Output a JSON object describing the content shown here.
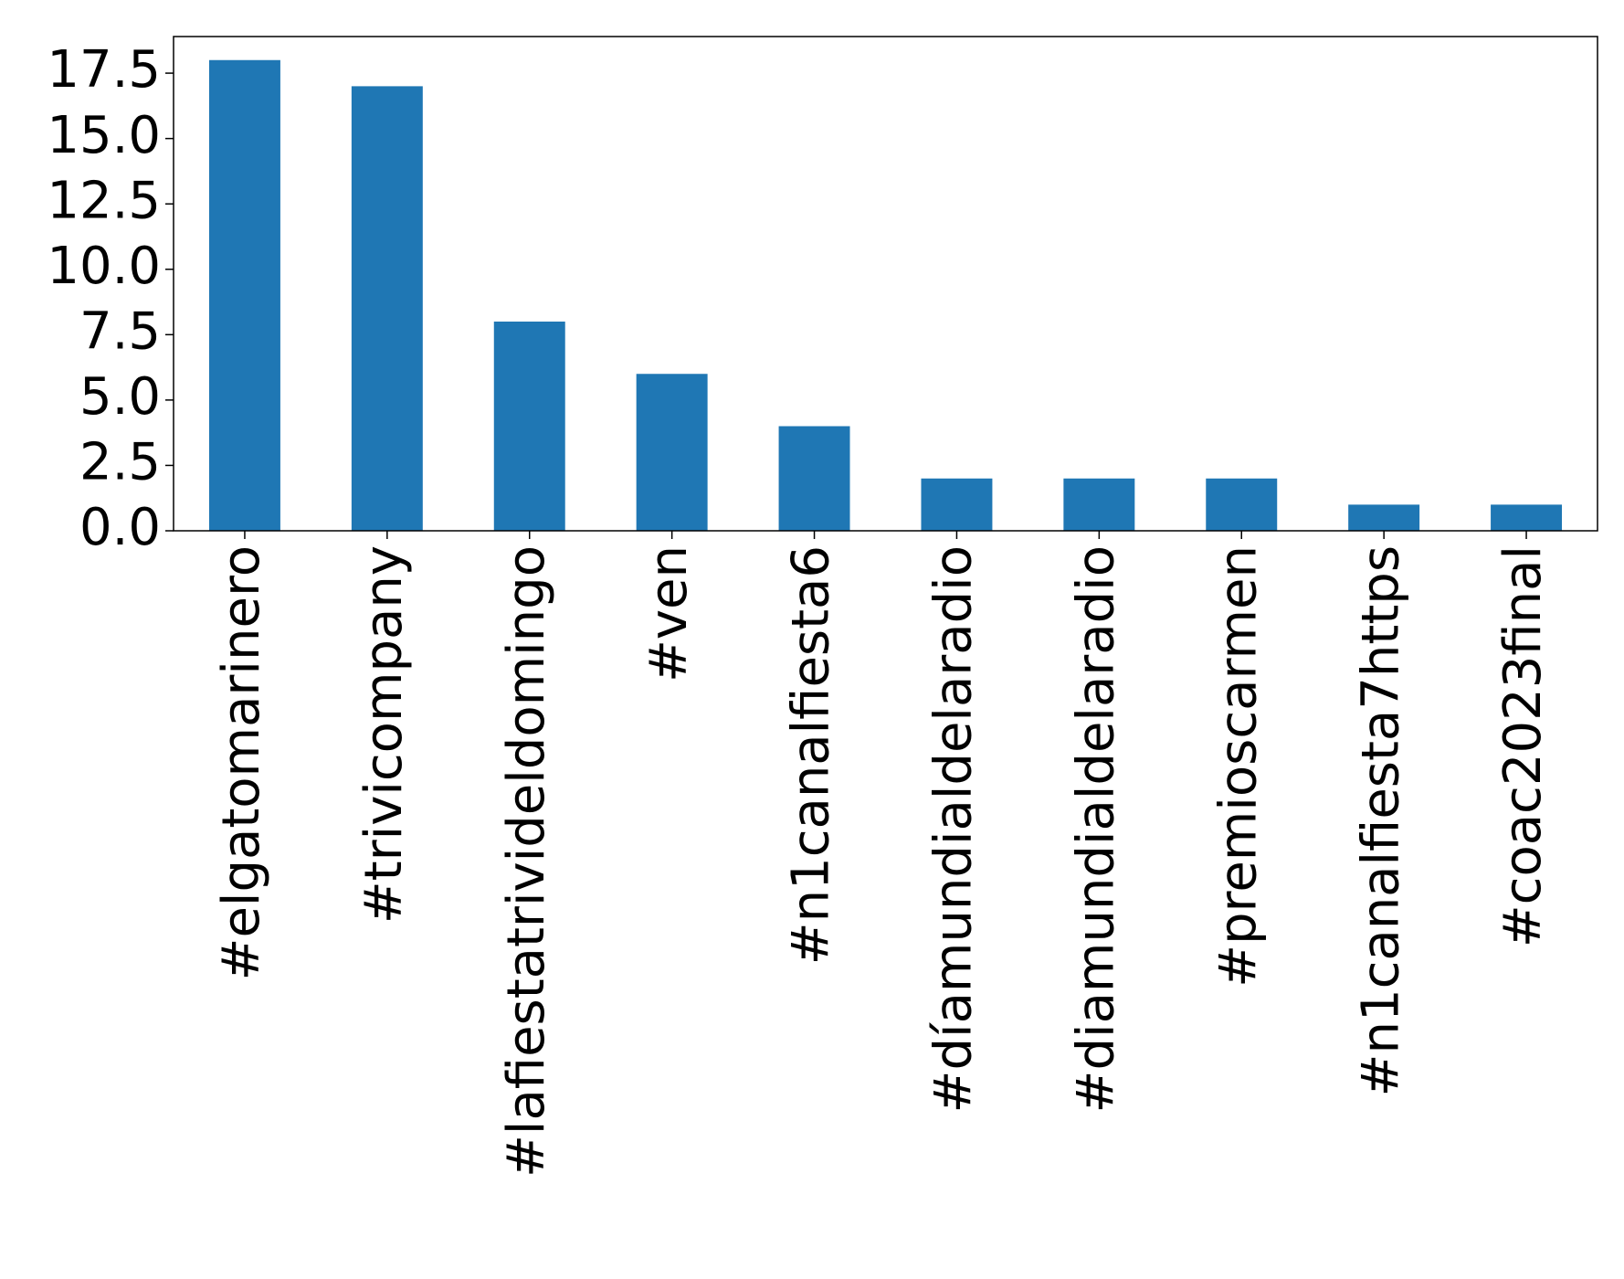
{
  "chart_data": {
    "type": "bar",
    "categories": [
      "#elgatomarinero",
      "#trivicompany",
      "#lafiestatrivideldomingo",
      "#ven",
      "#n1canalfiesta6",
      "#díamundialdelaradio",
      "#diamundialdelaradio",
      "#premioscarmen",
      "#n1canalfiesta7https",
      "#coac2023final"
    ],
    "values": [
      18,
      17,
      8,
      6,
      4,
      2,
      2,
      2,
      1,
      1
    ],
    "color": "#1f77b4",
    "ylim": [
      0,
      18.9
    ],
    "yticks": [
      {
        "value": 0,
        "label": "0.0"
      },
      2.5,
      {
        "value": 5,
        "label": "5.0"
      },
      7.5,
      {
        "value": 10,
        "label": "10.0"
      },
      12.5,
      {
        "value": 15,
        "label": "15.0"
      },
      17.5
    ],
    "grid": false
  }
}
